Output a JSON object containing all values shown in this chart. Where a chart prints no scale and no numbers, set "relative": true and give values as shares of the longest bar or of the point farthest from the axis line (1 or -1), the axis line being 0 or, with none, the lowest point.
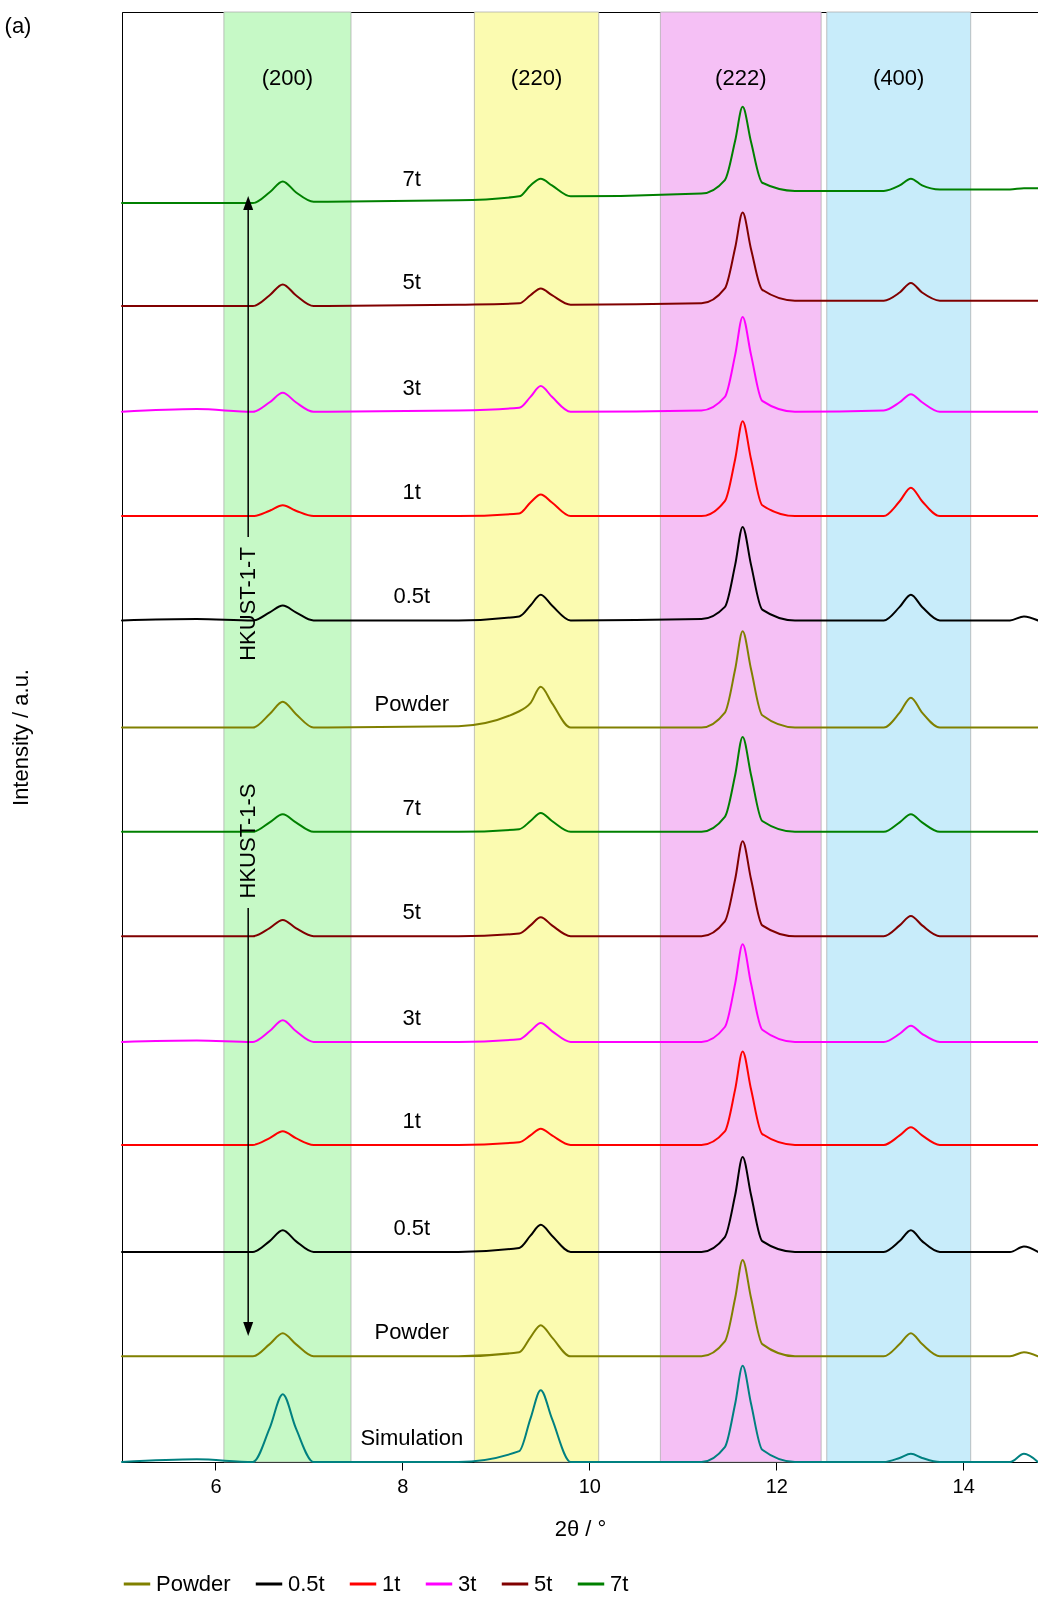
{
  "chart_data": {
    "type": "line",
    "relative": true,
    "xlabel": "2θ / °",
    "ylabel": "Intensity / a.u.",
    "xlim": [
      5,
      14.8
    ],
    "xticks": [
      6,
      8,
      10,
      12,
      14
    ],
    "legend": "bottom",
    "marker": "none",
    "annotations": [
      "(a)",
      "HKUST-1-T",
      "HKUST-1-S"
    ],
    "bands": [
      {
        "axis": "x",
        "from": 6.09,
        "to": 7.45,
        "label": "(200)",
        "color": "#c6f9c6"
      },
      {
        "axis": "x",
        "from": 8.77,
        "to": 10.1,
        "label": "(220)",
        "color": "#fbfbb0"
      },
      {
        "axis": "x",
        "from": 10.76,
        "to": 12.48,
        "label": "(222)",
        "color": "#f5c0f5"
      },
      {
        "axis": "x",
        "from": 12.54,
        "to": 14.08,
        "label": "(400)",
        "color": "#c8ecfa"
      }
    ],
    "x": [
      5,
      5.8,
      6.4,
      6.58,
      6.72,
      6.86,
      7.05,
      8.6,
      9.25,
      9.37,
      9.48,
      9.6,
      9.8,
      11.2,
      11.45,
      11.56,
      11.64,
      11.73,
      11.85,
      12.2,
      13.15,
      13.32,
      13.44,
      13.56,
      13.75,
      14.5,
      14.65,
      14.8
    ],
    "series": [
      {
        "name": "Simulation",
        "color": "#008080",
        "values": [
          0,
          0.002,
          0,
          0.025,
          0.05,
          0.025,
          0,
          0,
          0.008,
          0.032,
          0.053,
          0.032,
          0,
          0,
          0.011,
          0.043,
          0.071,
          0.043,
          0.009,
          0,
          0,
          0.003,
          0.006,
          0.003,
          0,
          0,
          0.006,
          0
        ]
      },
      {
        "name": "Powder",
        "color": "#808000",
        "values": [
          0.078,
          0.078,
          0.078,
          0.087,
          0.095,
          0.087,
          0.078,
          0.078,
          0.081,
          0.092,
          0.101,
          0.092,
          0.078,
          0.078,
          0.089,
          0.121,
          0.149,
          0.121,
          0.087,
          0.078,
          0.078,
          0.087,
          0.095,
          0.087,
          0.078,
          0.078,
          0.081,
          0.078
        ]
      },
      {
        "name": "0.5t",
        "color": "#000000",
        "values": [
          0.155,
          0.155,
          0.155,
          0.163,
          0.171,
          0.163,
          0.155,
          0.155,
          0.158,
          0.167,
          0.175,
          0.167,
          0.155,
          0.155,
          0.166,
          0.197,
          0.225,
          0.197,
          0.163,
          0.155,
          0.155,
          0.163,
          0.171,
          0.163,
          0.155,
          0.155,
          0.159,
          0.155
        ]
      },
      {
        "name": "1t",
        "color": "#ff0000",
        "values": [
          0.234,
          0.234,
          0.234,
          0.239,
          0.244,
          0.239,
          0.234,
          0.234,
          0.236,
          0.241,
          0.246,
          0.241,
          0.234,
          0.234,
          0.244,
          0.275,
          0.303,
          0.275,
          0.242,
          0.234,
          0.234,
          0.241,
          0.247,
          0.241,
          0.234,
          0.234,
          0.234,
          0.234
        ]
      },
      {
        "name": "3t",
        "color": "#ff00ff",
        "values": [
          0.31,
          0.311,
          0.31,
          0.318,
          0.326,
          0.318,
          0.31,
          0.31,
          0.312,
          0.318,
          0.324,
          0.318,
          0.31,
          0.31,
          0.321,
          0.353,
          0.382,
          0.353,
          0.319,
          0.31,
          0.31,
          0.316,
          0.322,
          0.316,
          0.31,
          0.31,
          0.31,
          0.31
        ]
      },
      {
        "name": "5t",
        "color": "#800000",
        "values": [
          0.388,
          0.388,
          0.388,
          0.394,
          0.4,
          0.394,
          0.388,
          0.388,
          0.39,
          0.396,
          0.402,
          0.396,
          0.388,
          0.388,
          0.399,
          0.43,
          0.458,
          0.43,
          0.396,
          0.388,
          0.388,
          0.396,
          0.403,
          0.396,
          0.388,
          0.388,
          0.388,
          0.388
        ]
      },
      {
        "name": "7t",
        "color": "#008000",
        "values": [
          0.465,
          0.465,
          0.465,
          0.472,
          0.478,
          0.472,
          0.465,
          0.465,
          0.467,
          0.473,
          0.479,
          0.473,
          0.465,
          0.465,
          0.476,
          0.507,
          0.535,
          0.507,
          0.473,
          0.465,
          0.465,
          0.472,
          0.478,
          0.472,
          0.465,
          0.465,
          0.465,
          0.465
        ]
      },
      {
        "name": "Powder",
        "color": "#808000",
        "values": [
          0.542,
          0.542,
          0.542,
          0.552,
          0.561,
          0.552,
          0.542,
          0.543,
          0.554,
          0.56,
          0.572,
          0.56,
          0.542,
          0.542,
          0.553,
          0.585,
          0.613,
          0.585,
          0.551,
          0.542,
          0.542,
          0.553,
          0.564,
          0.553,
          0.542,
          0.542,
          0.542,
          0.542
        ]
      },
      {
        "name": "0.5t",
        "color": "#000000",
        "values": [
          0.621,
          0.622,
          0.621,
          0.627,
          0.632,
          0.627,
          0.621,
          0.621,
          0.624,
          0.632,
          0.64,
          0.632,
          0.621,
          0.622,
          0.631,
          0.662,
          0.69,
          0.662,
          0.629,
          0.621,
          0.621,
          0.631,
          0.64,
          0.631,
          0.621,
          0.621,
          0.624,
          0.621
        ]
      },
      {
        "name": "1t",
        "color": "#ff0000",
        "values": [
          0.698,
          0.698,
          0.698,
          0.702,
          0.706,
          0.702,
          0.698,
          0.698,
          0.7,
          0.708,
          0.714,
          0.708,
          0.698,
          0.698,
          0.709,
          0.74,
          0.768,
          0.74,
          0.706,
          0.698,
          0.698,
          0.709,
          0.719,
          0.709,
          0.698,
          0.698,
          0.698,
          0.698
        ]
      },
      {
        "name": "3t",
        "color": "#ff00ff",
        "values": [
          0.775,
          0.777,
          0.775,
          0.782,
          0.789,
          0.782,
          0.775,
          0.776,
          0.778,
          0.786,
          0.794,
          0.786,
          0.775,
          0.776,
          0.786,
          0.817,
          0.845,
          0.817,
          0.783,
          0.775,
          0.776,
          0.782,
          0.788,
          0.782,
          0.775,
          0.775,
          0.775,
          0.775
        ]
      },
      {
        "name": "5t",
        "color": "#800000",
        "values": [
          0.853,
          0.853,
          0.853,
          0.861,
          0.869,
          0.861,
          0.853,
          0.854,
          0.855,
          0.861,
          0.866,
          0.861,
          0.854,
          0.855,
          0.866,
          0.896,
          0.922,
          0.895,
          0.865,
          0.857,
          0.857,
          0.863,
          0.87,
          0.863,
          0.857,
          0.857,
          0.857,
          0.857
        ]
      },
      {
        "name": "7t",
        "color": "#008000",
        "values": [
          0.929,
          0.929,
          0.929,
          0.937,
          0.945,
          0.937,
          0.93,
          0.931,
          0.934,
          0.942,
          0.947,
          0.942,
          0.934,
          0.936,
          0.946,
          0.975,
          1,
          0.974,
          0.944,
          0.938,
          0.938,
          0.942,
          0.947,
          0.942,
          0.939,
          0.939,
          0.94,
          0.94
        ]
      }
    ]
  }
}
